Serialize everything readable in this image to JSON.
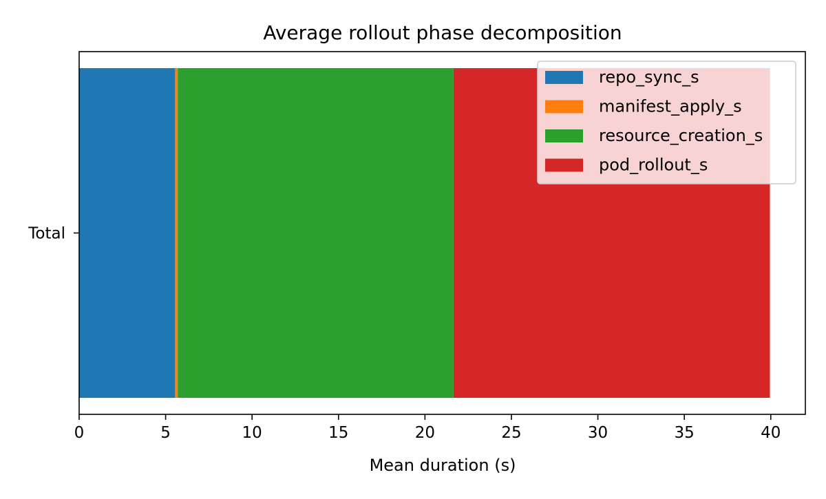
{
  "chart_data": {
    "type": "bar",
    "orientation": "horizontal",
    "stacked": true,
    "title": "Average rollout phase decomposition",
    "xlabel": "Mean duration (s)",
    "ylabel": "",
    "categories": [
      "Total"
    ],
    "xlim": [
      0,
      42
    ],
    "xticks": [
      0,
      5,
      10,
      15,
      20,
      25,
      30,
      35,
      40
    ],
    "xtick_labels": [
      "0",
      "5",
      "10",
      "15",
      "20",
      "25",
      "30",
      "35",
      "40"
    ],
    "grid": false,
    "legend_position": "top-right",
    "series": [
      {
        "name": "repo_sync_s",
        "values": [
          5.55
        ],
        "color": "#1f77b4"
      },
      {
        "name": "manifest_apply_s",
        "values": [
          0.15
        ],
        "color": "#ff7f0e"
      },
      {
        "name": "resource_creation_s",
        "values": [
          15.95
        ],
        "color": "#2ca02c"
      },
      {
        "name": "pod_rollout_s",
        "values": [
          18.3
        ],
        "color": "#d62728"
      }
    ]
  }
}
